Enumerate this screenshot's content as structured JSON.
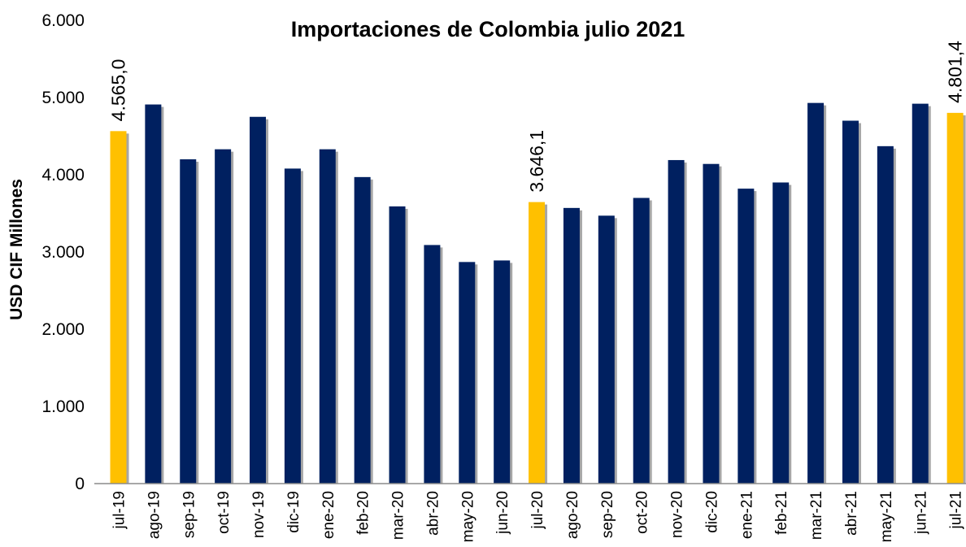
{
  "chart_data": {
    "type": "bar",
    "title": "Importaciones de Colombia julio 2021",
    "ylabel": "USD CIF Millones",
    "xlabel": "",
    "ylim": [
      0,
      6000
    ],
    "yticks": [
      0,
      1000,
      2000,
      3000,
      4000,
      5000,
      6000
    ],
    "ytick_labels": [
      "0",
      "1.000",
      "2.000",
      "3.000",
      "4.000",
      "5.000",
      "6.000"
    ],
    "grid": false,
    "legend": "none",
    "categories": [
      "jul-19",
      "ago-19",
      "sep-19",
      "oct-19",
      "nov-19",
      "dic-19",
      "ene-20",
      "feb-20",
      "mar-20",
      "abr-20",
      "may-20",
      "jun-20",
      "jul-20",
      "ago-20",
      "sep-20",
      "oct-20",
      "nov-20",
      "dic-20",
      "ene-21",
      "feb-21",
      "mar-21",
      "abr-21",
      "may-21",
      "jun-21",
      "jul-21"
    ],
    "values": [
      4565.0,
      4910,
      4200,
      4330,
      4750,
      4080,
      4330,
      3970,
      3590,
      3090,
      2870,
      2890,
      3646.1,
      3570,
      3470,
      3700,
      4190,
      4140,
      3820,
      3900,
      4930,
      4700,
      4370,
      4920,
      4801.4
    ],
    "highlighted": [
      0,
      12,
      24
    ],
    "data_labels": [
      {
        "index": 0,
        "text": "4.565,0"
      },
      {
        "index": 12,
        "text": "3.646,1"
      },
      {
        "index": 24,
        "text": "4.801,4"
      }
    ],
    "colors": {
      "bar": "#002060",
      "highlight": "#FFC000",
      "shadow": "#a6a6a6"
    }
  }
}
